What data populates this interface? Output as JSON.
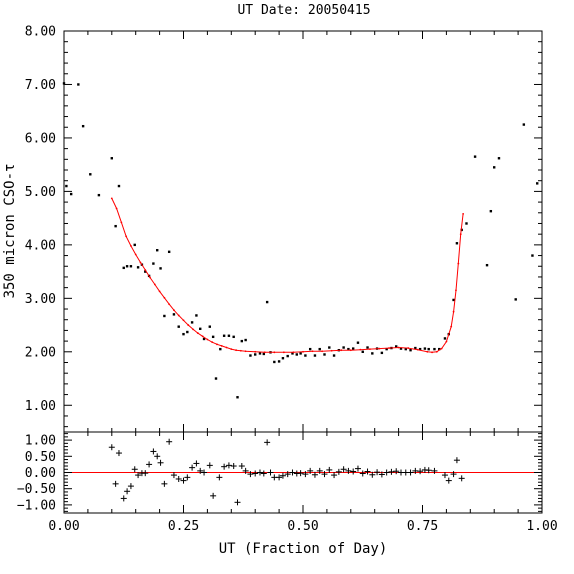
{
  "chart_data": [
    {
      "type": "scatter",
      "title": "UT Date: 20050415",
      "ylabel": "350 micron CSO-τ",
      "xlim": [
        0.0,
        1.0
      ],
      "ylim": [
        0.5,
        8.0
      ],
      "grid": false,
      "xticks": [
        0.0,
        0.25,
        0.5,
        0.75,
        1.0
      ],
      "xtick_labels": [
        "0.00",
        "0.25",
        "0.50",
        "0.75",
        "1.00"
      ],
      "yticks": [
        1.0,
        2.0,
        3.0,
        4.0,
        5.0,
        6.0,
        7.0,
        8.0
      ],
      "ytick_labels": [
        "1.00",
        "2.00",
        "3.00",
        "4.00",
        "5.00",
        "6.00",
        "7.00",
        "8.00"
      ],
      "series": [
        {
          "kind": "points",
          "color": "#000000",
          "points": [
            [
              0.0,
              7.02
            ],
            [
              0.005,
              5.1
            ],
            [
              0.015,
              4.95
            ],
            [
              0.03,
              7.0
            ],
            [
              0.04,
              6.22
            ],
            [
              0.055,
              5.32
            ],
            [
              0.073,
              4.93
            ],
            [
              0.1,
              5.62
            ],
            [
              0.108,
              4.35
            ],
            [
              0.115,
              5.1
            ],
            [
              0.125,
              3.57
            ],
            [
              0.132,
              3.6
            ],
            [
              0.14,
              3.6
            ],
            [
              0.148,
              4.0
            ],
            [
              0.155,
              3.58
            ],
            [
              0.163,
              3.63
            ],
            [
              0.17,
              3.5
            ],
            [
              0.178,
              3.42
            ],
            [
              0.187,
              3.65
            ],
            [
              0.195,
              3.9
            ],
            [
              0.202,
              3.56
            ],
            [
              0.21,
              2.67
            ],
            [
              0.22,
              3.87
            ],
            [
              0.23,
              2.7
            ],
            [
              0.24,
              2.47
            ],
            [
              0.25,
              2.33
            ],
            [
              0.258,
              2.37
            ],
            [
              0.268,
              2.55
            ],
            [
              0.277,
              2.68
            ],
            [
              0.285,
              2.43
            ],
            [
              0.293,
              2.24
            ],
            [
              0.305,
              2.47
            ],
            [
              0.312,
              2.28
            ],
            [
              0.318,
              1.5
            ],
            [
              0.327,
              2.05
            ],
            [
              0.335,
              2.3
            ],
            [
              0.345,
              2.3
            ],
            [
              0.355,
              2.28
            ],
            [
              0.363,
              1.15
            ],
            [
              0.372,
              2.2
            ],
            [
              0.38,
              2.22
            ],
            [
              0.39,
              1.93
            ],
            [
              0.4,
              1.95
            ],
            [
              0.41,
              1.97
            ],
            [
              0.418,
              1.96
            ],
            [
              0.425,
              2.93
            ],
            [
              0.432,
              1.99
            ],
            [
              0.44,
              1.81
            ],
            [
              0.45,
              1.82
            ],
            [
              0.458,
              1.88
            ],
            [
              0.468,
              1.92
            ],
            [
              0.478,
              1.97
            ],
            [
              0.487,
              1.95
            ],
            [
              0.495,
              1.97
            ],
            [
              0.505,
              1.93
            ],
            [
              0.515,
              2.05
            ],
            [
              0.525,
              1.93
            ],
            [
              0.535,
              2.05
            ],
            [
              0.545,
              1.95
            ],
            [
              0.555,
              2.08
            ],
            [
              0.565,
              1.93
            ],
            [
              0.575,
              2.03
            ],
            [
              0.585,
              2.08
            ],
            [
              0.595,
              2.05
            ],
            [
              0.605,
              2.06
            ],
            [
              0.615,
              2.17
            ],
            [
              0.625,
              2.0
            ],
            [
              0.635,
              2.08
            ],
            [
              0.645,
              1.97
            ],
            [
              0.655,
              2.06
            ],
            [
              0.665,
              1.98
            ],
            [
              0.675,
              2.05
            ],
            [
              0.685,
              2.07
            ],
            [
              0.695,
              2.1
            ],
            [
              0.705,
              2.06
            ],
            [
              0.715,
              2.05
            ],
            [
              0.725,
              2.03
            ],
            [
              0.735,
              2.07
            ],
            [
              0.745,
              2.05
            ],
            [
              0.755,
              2.06
            ],
            [
              0.763,
              2.05
            ],
            [
              0.775,
              2.05
            ],
            [
              0.785,
              2.05
            ],
            [
              0.797,
              2.25
            ],
            [
              0.805,
              2.33
            ],
            [
              0.815,
              2.97
            ],
            [
              0.822,
              4.03
            ],
            [
              0.832,
              4.28
            ],
            [
              0.842,
              4.4
            ],
            [
              0.86,
              5.65
            ],
            [
              0.885,
              3.62
            ],
            [
              0.893,
              4.63
            ],
            [
              0.9,
              5.45
            ],
            [
              0.91,
              5.62
            ],
            [
              0.945,
              2.98
            ],
            [
              0.962,
              6.25
            ],
            [
              0.98,
              3.8
            ],
            [
              0.99,
              5.15
            ]
          ]
        },
        {
          "kind": "fit-curve",
          "color": "#ff0000",
          "points": [
            [
              0.1,
              4.87
            ],
            [
              0.11,
              4.68
            ],
            [
              0.12,
              4.42
            ],
            [
              0.13,
              4.16
            ],
            [
              0.14,
              3.98
            ],
            [
              0.15,
              3.82
            ],
            [
              0.16,
              3.67
            ],
            [
              0.17,
              3.53
            ],
            [
              0.18,
              3.39
            ],
            [
              0.19,
              3.26
            ],
            [
              0.2,
              3.13
            ],
            [
              0.21,
              3.01
            ],
            [
              0.22,
              2.89
            ],
            [
              0.23,
              2.78
            ],
            [
              0.24,
              2.68
            ],
            [
              0.25,
              2.59
            ],
            [
              0.26,
              2.5
            ],
            [
              0.27,
              2.42
            ],
            [
              0.28,
              2.35
            ],
            [
              0.29,
              2.29
            ],
            [
              0.3,
              2.23
            ],
            [
              0.31,
              2.18
            ],
            [
              0.32,
              2.14
            ],
            [
              0.33,
              2.11
            ],
            [
              0.34,
              2.08
            ],
            [
              0.35,
              2.05
            ],
            [
              0.36,
              2.03
            ],
            [
              0.37,
              2.02
            ],
            [
              0.38,
              2.01
            ],
            [
              0.4,
              2.0
            ],
            [
              0.42,
              1.99
            ],
            [
              0.44,
              1.99
            ],
            [
              0.46,
              1.99
            ],
            [
              0.48,
              1.99
            ],
            [
              0.5,
              2.0
            ],
            [
              0.52,
              2.01
            ],
            [
              0.54,
              2.01
            ],
            [
              0.56,
              2.02
            ],
            [
              0.58,
              2.03
            ],
            [
              0.6,
              2.03
            ],
            [
              0.62,
              2.04
            ],
            [
              0.64,
              2.05
            ],
            [
              0.66,
              2.06
            ],
            [
              0.68,
              2.07
            ],
            [
              0.7,
              2.08
            ],
            [
              0.72,
              2.07
            ],
            [
              0.74,
              2.04
            ],
            [
              0.76,
              2.0
            ],
            [
              0.77,
              1.99
            ],
            [
              0.78,
              2.0
            ],
            [
              0.79,
              2.06
            ],
            [
              0.8,
              2.19
            ],
            [
              0.81,
              2.47
            ],
            [
              0.815,
              2.75
            ],
            [
              0.82,
              3.15
            ],
            [
              0.825,
              3.65
            ],
            [
              0.83,
              4.2
            ],
            [
              0.835,
              4.58
            ]
          ]
        }
      ]
    },
    {
      "type": "scatter",
      "xlabel": "UT (Fraction of Day)",
      "xlim": [
        0.0,
        1.0
      ],
      "ylim": [
        -1.25,
        1.25
      ],
      "grid": false,
      "xticks": [
        0.0,
        0.25,
        0.5,
        0.75,
        1.0
      ],
      "xtick_labels": [
        "0.00",
        "0.25",
        "0.50",
        "0.75",
        "1.00"
      ],
      "yticks": [
        -1.0,
        -0.5,
        0.0,
        0.5,
        1.0
      ],
      "ytick_labels": [
        "−1.00",
        "−0.50",
        "0.00",
        "0.50",
        "1.00"
      ],
      "reference_line": {
        "y": 0.0,
        "color": "#ff0000"
      },
      "series": [
        {
          "kind": "residual-points",
          "marker": "plus",
          "color": "#000000",
          "points": [
            [
              0.1,
              0.78
            ],
            [
              0.108,
              -0.35
            ],
            [
              0.115,
              0.6
            ],
            [
              0.125,
              -0.8
            ],
            [
              0.132,
              -0.58
            ],
            [
              0.14,
              -0.42
            ],
            [
              0.148,
              0.1
            ],
            [
              0.155,
              -0.08
            ],
            [
              0.163,
              -0.02
            ],
            [
              0.17,
              -0.02
            ],
            [
              0.178,
              0.25
            ],
            [
              0.187,
              0.65
            ],
            [
              0.195,
              0.5
            ],
            [
              0.202,
              0.3
            ],
            [
              0.21,
              -0.35
            ],
            [
              0.22,
              0.95
            ],
            [
              0.23,
              -0.08
            ],
            [
              0.24,
              -0.2
            ],
            [
              0.25,
              -0.25
            ],
            [
              0.258,
              -0.15
            ],
            [
              0.268,
              0.15
            ],
            [
              0.277,
              0.28
            ],
            [
              0.285,
              0.05
            ],
            [
              0.293,
              0.0
            ],
            [
              0.305,
              0.22
            ],
            [
              0.312,
              -0.72
            ],
            [
              0.325,
              -0.15
            ],
            [
              0.335,
              0.18
            ],
            [
              0.345,
              0.22
            ],
            [
              0.355,
              0.2
            ],
            [
              0.363,
              -0.92
            ],
            [
              0.372,
              0.2
            ],
            [
              0.38,
              0.05
            ],
            [
              0.39,
              -0.05
            ],
            [
              0.4,
              -0.03
            ],
            [
              0.41,
              0.0
            ],
            [
              0.418,
              -0.03
            ],
            [
              0.425,
              0.93
            ],
            [
              0.432,
              0.0
            ],
            [
              0.44,
              -0.15
            ],
            [
              0.45,
              -0.15
            ],
            [
              0.458,
              -0.1
            ],
            [
              0.468,
              -0.05
            ],
            [
              0.478,
              0.0
            ],
            [
              0.487,
              -0.03
            ],
            [
              0.495,
              -0.02
            ],
            [
              0.505,
              -0.05
            ],
            [
              0.515,
              0.05
            ],
            [
              0.525,
              -0.07
            ],
            [
              0.535,
              0.05
            ],
            [
              0.545,
              -0.05
            ],
            [
              0.555,
              0.08
            ],
            [
              0.565,
              -0.08
            ],
            [
              0.575,
              0.02
            ],
            [
              0.585,
              0.1
            ],
            [
              0.595,
              0.05
            ],
            [
              0.605,
              0.03
            ],
            [
              0.615,
              0.12
            ],
            [
              0.625,
              -0.03
            ],
            [
              0.635,
              0.03
            ],
            [
              0.645,
              -0.07
            ],
            [
              0.655,
              0.01
            ],
            [
              0.665,
              -0.06
            ],
            [
              0.675,
              0.0
            ],
            [
              0.685,
              0.02
            ],
            [
              0.695,
              0.04
            ],
            [
              0.705,
              0.0
            ],
            [
              0.715,
              0.0
            ],
            [
              0.725,
              0.0
            ],
            [
              0.735,
              0.05
            ],
            [
              0.745,
              0.04
            ],
            [
              0.755,
              0.08
            ],
            [
              0.763,
              0.07
            ],
            [
              0.775,
              0.05
            ],
            [
              0.797,
              -0.08
            ],
            [
              0.805,
              -0.25
            ],
            [
              0.815,
              -0.05
            ],
            [
              0.822,
              0.38
            ],
            [
              0.832,
              -0.18
            ]
          ]
        }
      ]
    }
  ]
}
